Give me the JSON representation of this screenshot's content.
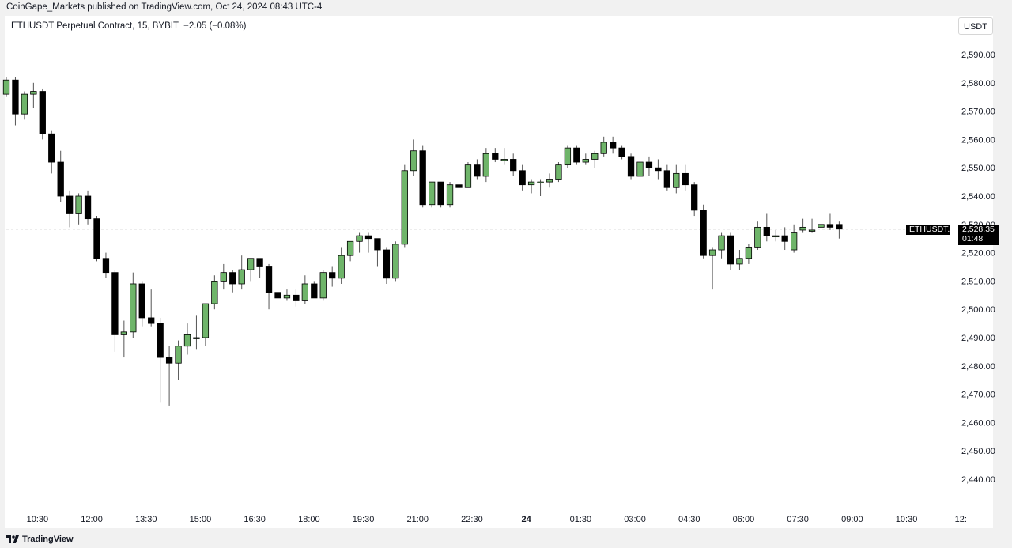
{
  "header": {
    "publish_line": "CoinGape_Markets published on TradingView.com, Oct 24, 2024 08:43 UTC-4",
    "symbol_title": "ETHUSDT Perpetual Contract, 15, BYBIT  −2.05 (−0.08%)",
    "currency": "USDT"
  },
  "price_tag": {
    "symbol": "ETHUSDT.P",
    "price": "2,528.35",
    "countdown": "01:48"
  },
  "footer": {
    "brand": "TradingView"
  },
  "colors": {
    "up": "#6fb56a",
    "down": "#000000",
    "last_price_line": "#b8b8b8"
  },
  "chart_data": {
    "type": "candlestick",
    "title": "ETHUSDT Perpetual Contract, 15, BYBIT",
    "ylim": [
      2435,
      2595
    ],
    "y_ticks": [
      "2,590.00",
      "2,580.00",
      "2,570.00",
      "2,560.00",
      "2,550.00",
      "2,540.00",
      "2,530.00",
      "2,520.00",
      "2,510.00",
      "2,500.00",
      "2,490.00",
      "2,480.00",
      "2,470.00",
      "2,460.00",
      "2,450.00",
      "2,440.00"
    ],
    "y_tick_values": [
      2590,
      2580,
      2570,
      2560,
      2550,
      2540,
      2530,
      2520,
      2510,
      2500,
      2490,
      2480,
      2470,
      2460,
      2450,
      2440
    ],
    "x_ticks": [
      "10:30",
      "12:00",
      "13:30",
      "15:00",
      "16:30",
      "18:00",
      "19:30",
      "21:00",
      "22:30",
      "24",
      "01:30",
      "03:00",
      "04:30",
      "06:00",
      "07:30",
      "09:00",
      "10:30",
      "12:"
    ],
    "x_tick_index": [
      3,
      9,
      15,
      21,
      27,
      33,
      39,
      45,
      51,
      57,
      63,
      69,
      75,
      81,
      87,
      93,
      99,
      105
    ],
    "last_price": 2528.35,
    "candles": [
      {
        "o": 2576,
        "h": 2582,
        "l": 2575,
        "c": 2581
      },
      {
        "o": 2581,
        "h": 2582,
        "l": 2565,
        "c": 2569
      },
      {
        "o": 2569,
        "h": 2577,
        "l": 2567,
        "c": 2576
      },
      {
        "o": 2576,
        "h": 2580,
        "l": 2571,
        "c": 2577
      },
      {
        "o": 2577,
        "h": 2578,
        "l": 2560,
        "c": 2562
      },
      {
        "o": 2562,
        "h": 2563,
        "l": 2548,
        "c": 2552
      },
      {
        "o": 2552,
        "h": 2556,
        "l": 2538,
        "c": 2540
      },
      {
        "o": 2540,
        "h": 2542,
        "l": 2529,
        "c": 2534
      },
      {
        "o": 2534,
        "h": 2541,
        "l": 2530,
        "c": 2540
      },
      {
        "o": 2540,
        "h": 2542,
        "l": 2530,
        "c": 2532
      },
      {
        "o": 2532,
        "h": 2533,
        "l": 2517,
        "c": 2518
      },
      {
        "o": 2518,
        "h": 2520,
        "l": 2511,
        "c": 2513
      },
      {
        "o": 2513,
        "h": 2514,
        "l": 2485,
        "c": 2491
      },
      {
        "o": 2491,
        "h": 2496,
        "l": 2483,
        "c": 2492
      },
      {
        "o": 2492,
        "h": 2513,
        "l": 2490,
        "c": 2509
      },
      {
        "o": 2509,
        "h": 2510,
        "l": 2494,
        "c": 2497
      },
      {
        "o": 2497,
        "h": 2507,
        "l": 2494,
        "c": 2495
      },
      {
        "o": 2495,
        "h": 2497,
        "l": 2467,
        "c": 2483
      },
      {
        "o": 2483,
        "h": 2487,
        "l": 2466,
        "c": 2481
      },
      {
        "o": 2481,
        "h": 2489,
        "l": 2475,
        "c": 2487
      },
      {
        "o": 2487,
        "h": 2495,
        "l": 2484,
        "c": 2491
      },
      {
        "o": 2490,
        "h": 2498,
        "l": 2486,
        "c": 2490
      },
      {
        "o": 2490,
        "h": 2502,
        "l": 2487,
        "c": 2502
      },
      {
        "o": 2502,
        "h": 2512,
        "l": 2500,
        "c": 2510
      },
      {
        "o": 2510,
        "h": 2516,
        "l": 2507,
        "c": 2513
      },
      {
        "o": 2513,
        "h": 2514,
        "l": 2506,
        "c": 2509
      },
      {
        "o": 2509,
        "h": 2519,
        "l": 2507,
        "c": 2514
      },
      {
        "o": 2514,
        "h": 2518,
        "l": 2510,
        "c": 2518
      },
      {
        "o": 2518,
        "h": 2518,
        "l": 2511,
        "c": 2515
      },
      {
        "o": 2515,
        "h": 2516,
        "l": 2500,
        "c": 2506
      },
      {
        "o": 2506,
        "h": 2507,
        "l": 2501,
        "c": 2504
      },
      {
        "o": 2504,
        "h": 2507,
        "l": 2503,
        "c": 2505
      },
      {
        "o": 2505,
        "h": 2507,
        "l": 2501,
        "c": 2503
      },
      {
        "o": 2503,
        "h": 2512,
        "l": 2502,
        "c": 2509
      },
      {
        "o": 2509,
        "h": 2510,
        "l": 2504,
        "c": 2504
      },
      {
        "o": 2504,
        "h": 2514,
        "l": 2503,
        "c": 2513
      },
      {
        "o": 2513,
        "h": 2515,
        "l": 2508,
        "c": 2511
      },
      {
        "o": 2511,
        "h": 2522,
        "l": 2509,
        "c": 2519
      },
      {
        "o": 2519,
        "h": 2524,
        "l": 2517,
        "c": 2524
      },
      {
        "o": 2524,
        "h": 2527,
        "l": 2520,
        "c": 2526
      },
      {
        "o": 2526,
        "h": 2527,
        "l": 2520,
        "c": 2525
      },
      {
        "o": 2525,
        "h": 2525,
        "l": 2515,
        "c": 2521
      },
      {
        "o": 2521,
        "h": 2522,
        "l": 2509,
        "c": 2511
      },
      {
        "o": 2511,
        "h": 2524,
        "l": 2510,
        "c": 2523
      },
      {
        "o": 2523,
        "h": 2551,
        "l": 2522,
        "c": 2549
      },
      {
        "o": 2549,
        "h": 2560,
        "l": 2547,
        "c": 2556
      },
      {
        "o": 2556,
        "h": 2558,
        "l": 2536,
        "c": 2537
      },
      {
        "o": 2537,
        "h": 2545,
        "l": 2536,
        "c": 2545
      },
      {
        "o": 2545,
        "h": 2545,
        "l": 2536,
        "c": 2537
      },
      {
        "o": 2537,
        "h": 2545,
        "l": 2536,
        "c": 2544
      },
      {
        "o": 2544,
        "h": 2546,
        "l": 2541,
        "c": 2543
      },
      {
        "o": 2543,
        "h": 2552,
        "l": 2543,
        "c": 2551
      },
      {
        "o": 2551,
        "h": 2553,
        "l": 2546,
        "c": 2547
      },
      {
        "o": 2547,
        "h": 2557,
        "l": 2545,
        "c": 2555
      },
      {
        "o": 2555,
        "h": 2557,
        "l": 2552,
        "c": 2553
      },
      {
        "o": 2553,
        "h": 2557,
        "l": 2551,
        "c": 2553
      },
      {
        "o": 2553,
        "h": 2555,
        "l": 2547,
        "c": 2549
      },
      {
        "o": 2549,
        "h": 2551,
        "l": 2542,
        "c": 2544
      },
      {
        "o": 2544,
        "h": 2546,
        "l": 2541,
        "c": 2545
      },
      {
        "o": 2545,
        "h": 2546,
        "l": 2540,
        "c": 2545
      },
      {
        "o": 2545,
        "h": 2548,
        "l": 2543,
        "c": 2546
      },
      {
        "o": 2546,
        "h": 2552,
        "l": 2545,
        "c": 2551
      },
      {
        "o": 2551,
        "h": 2558,
        "l": 2550,
        "c": 2557
      },
      {
        "o": 2557,
        "h": 2558,
        "l": 2551,
        "c": 2552
      },
      {
        "o": 2552,
        "h": 2555,
        "l": 2551,
        "c": 2553
      },
      {
        "o": 2553,
        "h": 2556,
        "l": 2550,
        "c": 2555
      },
      {
        "o": 2555,
        "h": 2561,
        "l": 2554,
        "c": 2559
      },
      {
        "o": 2559,
        "h": 2561,
        "l": 2555,
        "c": 2557
      },
      {
        "o": 2557,
        "h": 2558,
        "l": 2553,
        "c": 2554
      },
      {
        "o": 2554,
        "h": 2555,
        "l": 2546,
        "c": 2547
      },
      {
        "o": 2547,
        "h": 2554,
        "l": 2546,
        "c": 2552
      },
      {
        "o": 2552,
        "h": 2554,
        "l": 2547,
        "c": 2550
      },
      {
        "o": 2550,
        "h": 2553,
        "l": 2546,
        "c": 2549
      },
      {
        "o": 2549,
        "h": 2551,
        "l": 2542,
        "c": 2543
      },
      {
        "o": 2543,
        "h": 2551,
        "l": 2541,
        "c": 2548
      },
      {
        "o": 2548,
        "h": 2551,
        "l": 2542,
        "c": 2544
      },
      {
        "o": 2544,
        "h": 2545,
        "l": 2533,
        "c": 2535
      },
      {
        "o": 2535,
        "h": 2537,
        "l": 2518,
        "c": 2519
      },
      {
        "o": 2519,
        "h": 2522,
        "l": 2507,
        "c": 2521
      },
      {
        "o": 2521,
        "h": 2527,
        "l": 2518,
        "c": 2526
      },
      {
        "o": 2526,
        "h": 2527,
        "l": 2514,
        "c": 2516
      },
      {
        "o": 2516,
        "h": 2521,
        "l": 2514,
        "c": 2518
      },
      {
        "o": 2518,
        "h": 2523,
        "l": 2516,
        "c": 2522
      },
      {
        "o": 2522,
        "h": 2531,
        "l": 2521,
        "c": 2529
      },
      {
        "o": 2529,
        "h": 2534,
        "l": 2524,
        "c": 2526
      },
      {
        "o": 2526,
        "h": 2528,
        "l": 2524,
        "c": 2526
      },
      {
        "o": 2526,
        "h": 2529,
        "l": 2521,
        "c": 2524
      },
      {
        "o": 2521,
        "h": 2530,
        "l": 2520,
        "c": 2527
      },
      {
        "o": 2528,
        "h": 2532,
        "l": 2527,
        "c": 2529
      },
      {
        "o": 2528,
        "h": 2532,
        "l": 2527,
        "c": 2528
      },
      {
        "o": 2529,
        "h": 2539,
        "l": 2527,
        "c": 2530
      },
      {
        "o": 2530,
        "h": 2534,
        "l": 2528,
        "c": 2529
      },
      {
        "o": 2530,
        "h": 2531,
        "l": 2525,
        "c": 2528.35
      }
    ]
  }
}
